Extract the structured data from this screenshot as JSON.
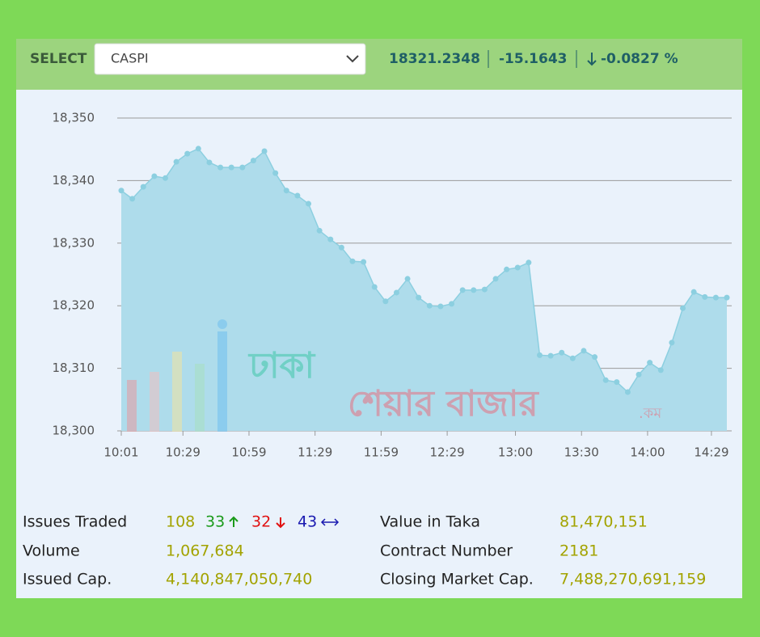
{
  "header": {
    "select_label": "SELECT",
    "dropdown": "CASPI",
    "price": "18321.2348",
    "change": "-15.1643",
    "change_percent": "-0.0827 %"
  },
  "watermark": {
    "line1": "ঢাকা",
    "line2": "শেয়ার বাজার",
    "suffix": ".কম"
  },
  "chart_data": {
    "type": "area",
    "x": [
      "10:01",
      "10:06",
      "10:11",
      "10:16",
      "10:21",
      "10:26",
      "10:31",
      "10:36",
      "10:41",
      "10:46",
      "10:51",
      "10:56",
      "11:01",
      "11:06",
      "11:11",
      "11:16",
      "11:21",
      "11:26",
      "11:31",
      "11:36",
      "11:41",
      "11:46",
      "11:51",
      "11:56",
      "12:01",
      "12:06",
      "12:11",
      "12:16",
      "12:21",
      "12:26",
      "12:31",
      "12:36",
      "12:41",
      "12:46",
      "12:51",
      "12:56",
      "13:01",
      "13:06",
      "13:11",
      "13:16",
      "13:21",
      "13:26",
      "13:31",
      "13:36",
      "13:41",
      "13:46",
      "13:51",
      "13:56",
      "14:01",
      "14:06",
      "14:11",
      "14:16",
      "14:21",
      "14:26",
      "14:31",
      "14:36"
    ],
    "values": [
      18338.4,
      18337.1,
      18339.0,
      18340.7,
      18340.4,
      18343.0,
      18344.3,
      18345.1,
      18342.9,
      18342.1,
      18342.1,
      18342.1,
      18343.2,
      18344.7,
      18341.2,
      18338.4,
      18337.6,
      18336.3,
      18332.0,
      18330.6,
      18329.3,
      18327.1,
      18327.0,
      18323.0,
      18320.7,
      18322.1,
      18324.3,
      18321.3,
      18320.0,
      18319.9,
      18320.3,
      18322.5,
      18322.5,
      18322.6,
      18324.3,
      18325.8,
      18326.1,
      18326.9,
      18312.1,
      18312.0,
      18312.5,
      18311.6,
      18312.8,
      18311.8,
      18308.1,
      18307.8,
      18306.2,
      18309.0,
      18310.9,
      18309.7,
      18314.1,
      18319.6,
      18322.2,
      18321.4,
      18321.3,
      18321.3
    ],
    "color": "#8ccfe0",
    "fill": "#aedceb",
    "xlim": [
      "10:01",
      "14:36"
    ],
    "xticks": [
      "10:01",
      "10:29",
      "10:59",
      "11:29",
      "11:59",
      "12:29",
      "13:00",
      "13:30",
      "14:00",
      "14:29"
    ],
    "ylim": [
      18300,
      18350
    ],
    "yticks": [
      {
        "value": 18300,
        "label": "18,300"
      },
      {
        "value": 18310,
        "label": "18,310"
      },
      {
        "value": 18320,
        "label": "18,320"
      },
      {
        "value": 18330,
        "label": "18,330"
      },
      {
        "value": 18340,
        "label": "18,340"
      },
      {
        "value": 18350,
        "label": "18,350"
      }
    ],
    "grid": true
  },
  "stats": {
    "issues_traded": {
      "label": "Issues Traded",
      "total": "108",
      "up": "33",
      "down": "32",
      "unchanged": "43"
    },
    "volume": {
      "label": "Volume",
      "value": "1,067,684"
    },
    "issued_cap": {
      "label": "Issued Cap.",
      "value": "4,140,847,050,740"
    },
    "value_in_taka": {
      "label": "Value in Taka",
      "value": "81,470,151"
    },
    "contract_number": {
      "label": "Contract Number",
      "value": "2181"
    },
    "closing_market_cap": {
      "label": "Closing Market Cap.",
      "value": "7,488,270,691,159"
    }
  }
}
